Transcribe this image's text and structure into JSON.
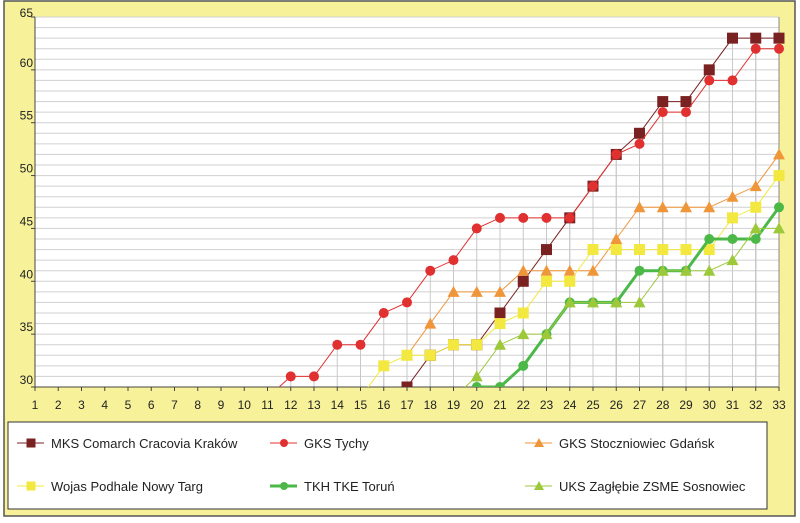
{
  "chart_data": {
    "type": "line",
    "title": "",
    "xlabel": "",
    "ylabel": "",
    "x": [
      1,
      2,
      3,
      4,
      5,
      6,
      7,
      8,
      9,
      10,
      11,
      12,
      13,
      14,
      15,
      16,
      17,
      18,
      19,
      20,
      21,
      22,
      23,
      24,
      25,
      26,
      27,
      28,
      29,
      30,
      31,
      32,
      33
    ],
    "xlim": [
      1,
      33
    ],
    "ylim": [
      30,
      65
    ],
    "yticks": [
      30,
      35,
      40,
      45,
      50,
      55,
      60,
      65
    ],
    "grid": true,
    "legend_position": "bottom",
    "series": [
      {
        "name": "MKS Comarch Cracovia Kraków",
        "color": "#7a2222",
        "marker": "square",
        "width": 1,
        "x": [
          16,
          17,
          18,
          19,
          20,
          21,
          22,
          23,
          24,
          25,
          26,
          27,
          28,
          29,
          30,
          31,
          32,
          33
        ],
        "values": [
          27,
          30,
          33,
          34,
          34,
          37,
          40,
          43,
          46,
          49,
          52,
          54,
          57,
          57,
          60,
          63,
          63,
          63
        ]
      },
      {
        "name": "GKS Tychy",
        "color": "#e03030",
        "marker": "circle",
        "width": 1,
        "x": [
          11,
          12,
          13,
          14,
          15,
          16,
          17,
          18,
          19,
          20,
          21,
          22,
          23,
          24,
          25,
          26,
          27,
          28,
          29,
          30,
          31,
          32,
          33
        ],
        "values": [
          29,
          31,
          31,
          34,
          34,
          37,
          38,
          41,
          42,
          45,
          46,
          46,
          46,
          46,
          49,
          52,
          53,
          56,
          56,
          59,
          59,
          62,
          62
        ]
      },
      {
        "name": "GKS Stoczniowiec Gdańsk",
        "color": "#f0963a",
        "marker": "triangle",
        "width": 1,
        "x": [
          17,
          18,
          19,
          20,
          21,
          22,
          23,
          24,
          25,
          26,
          27,
          28,
          29,
          30,
          31,
          32,
          33
        ],
        "values": [
          33,
          36,
          39,
          39,
          39,
          41,
          41,
          41,
          41,
          44,
          47,
          47,
          47,
          47,
          48,
          49,
          52
        ]
      },
      {
        "name": "Wojas Podhale Nowy Targ",
        "color": "#f2e840",
        "marker": "square",
        "width": 1,
        "x": [
          15,
          16,
          17,
          18,
          19,
          20,
          21,
          22,
          23,
          24,
          25,
          26,
          27,
          28,
          29,
          30,
          31,
          32,
          33
        ],
        "values": [
          29,
          32,
          33,
          33,
          34,
          34,
          36,
          37,
          40,
          40,
          43,
          43,
          43,
          43,
          43,
          43,
          46,
          47,
          50
        ]
      },
      {
        "name": "TKH TKE Toruń",
        "color": "#4cb848",
        "marker": "circle",
        "width": 3,
        "x": [
          20,
          21,
          22,
          23,
          24,
          25,
          26,
          27,
          28,
          29,
          30,
          31,
          32,
          33
        ],
        "values": [
          30,
          30,
          32,
          35,
          38,
          38,
          38,
          41,
          41,
          41,
          44,
          44,
          44,
          47
        ]
      },
      {
        "name": "UKS Zagłębie ZSME Sosnowiec",
        "color": "#9cc83a",
        "marker": "triangle",
        "width": 1,
        "x": [
          19,
          20,
          21,
          22,
          23,
          24,
          25,
          26,
          27,
          28,
          29,
          30,
          31,
          32,
          33
        ],
        "values": [
          29,
          31,
          34,
          35,
          35,
          38,
          38,
          38,
          38,
          41,
          41,
          41,
          42,
          45,
          45
        ]
      }
    ]
  }
}
